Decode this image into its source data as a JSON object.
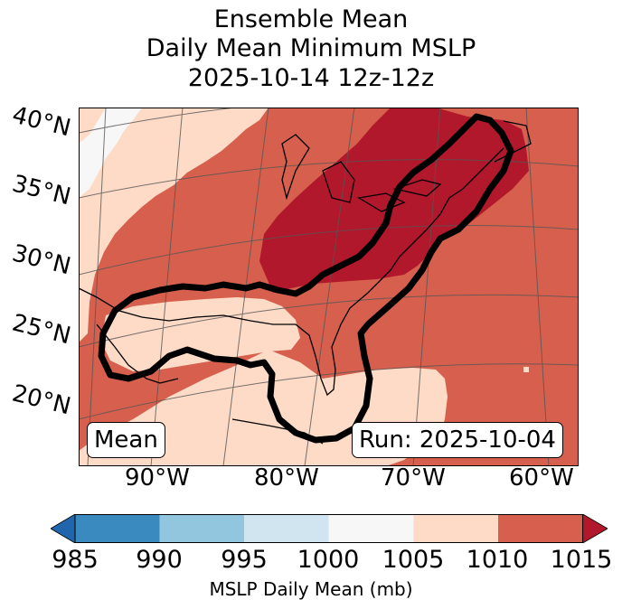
{
  "title": {
    "line1": "Ensemble Mean",
    "line2": "Daily Mean Minimum MSLP",
    "line3": "2025-10-14 12z-12z"
  },
  "map": {
    "lat_labels": [
      "40°N",
      "35°N",
      "30°N",
      "25°N",
      "20°N"
    ],
    "lon_labels": [
      "90°W",
      "80°W",
      "70°W",
      "60°W"
    ],
    "mean_label": "Mean",
    "run_label": "Run: 2025-10-04",
    "colors": {
      "c985": "#3a8ac0",
      "c990": "#92c5de",
      "c995": "#d1e5f0",
      "c1000": "#f7f7f7",
      "c1005": "#fddbc7",
      "c1010": "#d6604d",
      "c1015": "#b2182b",
      "under": "#2166ac",
      "contour": "#000000"
    }
  },
  "colorbar": {
    "ticks": [
      "985",
      "990",
      "995",
      "1000",
      "1005",
      "1010",
      "1015"
    ],
    "label": "MSLP Daily Mean (mb)"
  }
}
